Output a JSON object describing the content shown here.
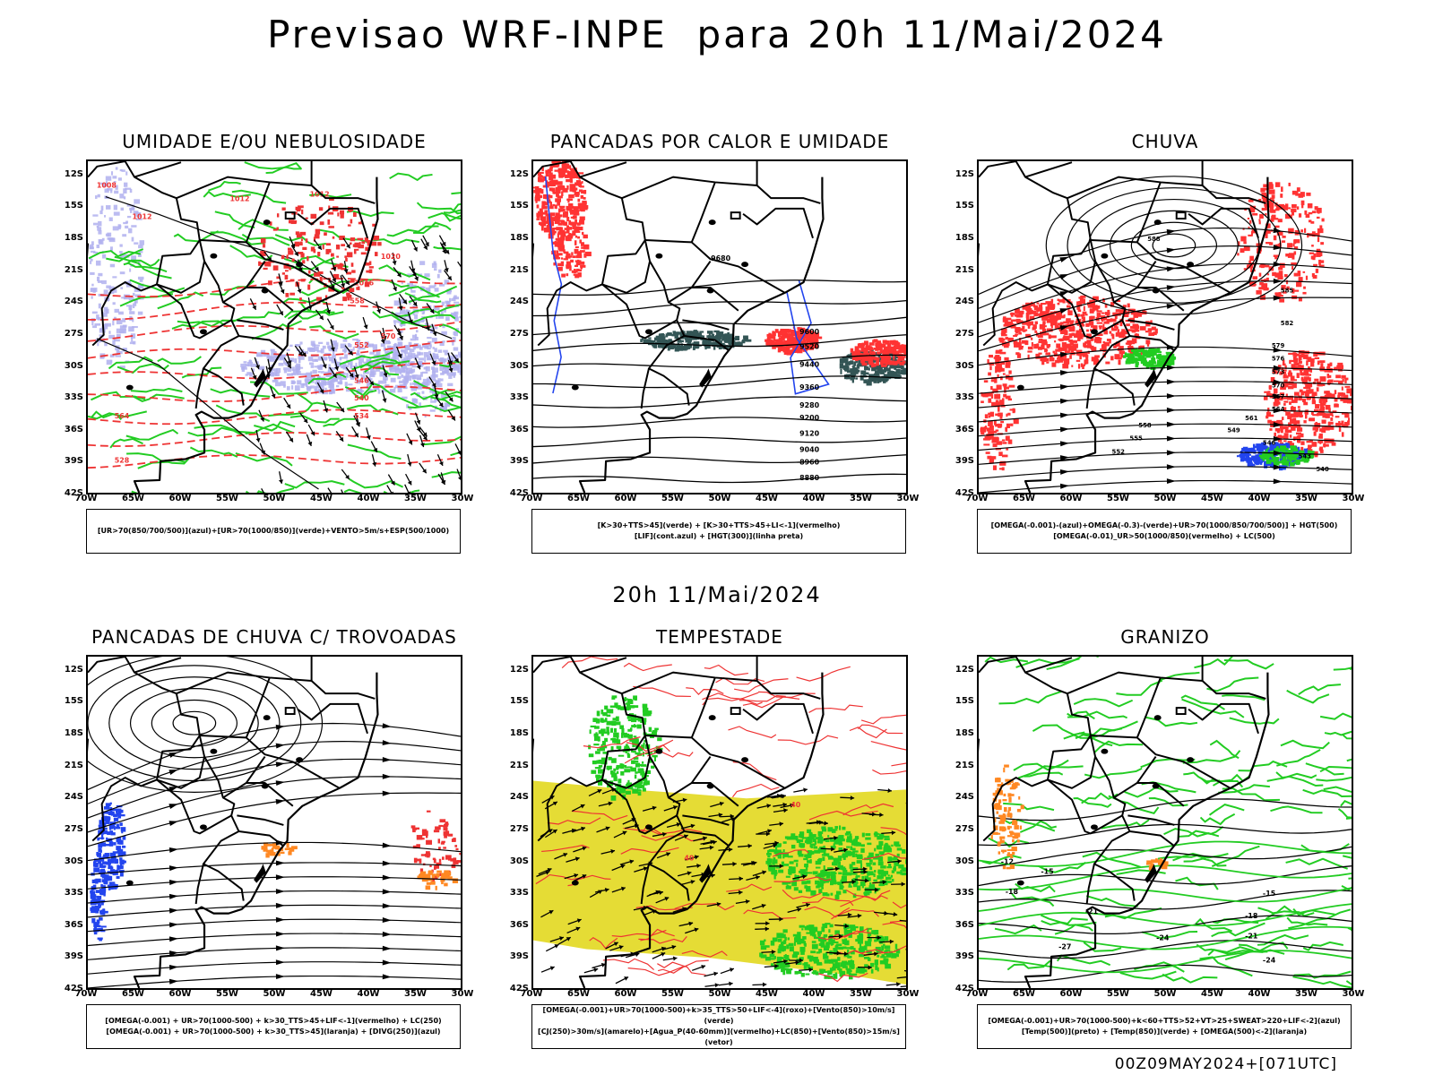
{
  "header": {
    "title": "Previsao WRF-INPE  para 20h 11/Mai/2024",
    "mid_title": "20h 11/Mai/2024",
    "footer": "00Z09MAY2024+[071UTC]"
  },
  "axes": {
    "lat_labels": [
      "12S",
      "15S",
      "18S",
      "21S",
      "24S",
      "27S",
      "30S",
      "33S",
      "36S",
      "39S",
      "42S"
    ],
    "lon_labels": [
      "70W",
      "65W",
      "60W",
      "55W",
      "50W",
      "45W",
      "40W",
      "35W",
      "30W"
    ]
  },
  "colors": {
    "contour_black": "#000000",
    "contour_red": "#ee3333",
    "green": "#22cc22",
    "blue": "#2244ee",
    "lilac": "#b0b0ee",
    "red_fill": "#ff3333",
    "dark_teal": "#335555",
    "yellow": "#e5dc35",
    "orange": "#ff8822"
  },
  "chart_data": [
    {
      "type": "map",
      "title": "UMIDADE E/OU NEBULOSIDADE",
      "legend": [
        "[UR>70(850/700/500)](azul)+[UR>70(1000/850)](verde)+VENTO>5m/s+ESP(500/1000)"
      ],
      "contour_labels": [
        "1008",
        "1012",
        "1012",
        "1012",
        "1016",
        "1020",
        "570",
        "564",
        "558",
        "552",
        "546",
        "540",
        "534",
        "528"
      ]
    },
    {
      "type": "map",
      "title": "PANCADAS POR CALOR E UMIDADE",
      "legend": [
        "[K>30+TTS>45](verde) + [K>30+TTS>45+LI<-1](vermelho)",
        "[LIF](cont.azul) + [HGT(300)](linha preta)"
      ],
      "contour_labels": [
        "9680",
        "9600",
        "9520",
        "9440",
        "9360",
        "9280",
        "9200",
        "9120",
        "9040",
        "8960",
        "8880"
      ]
    },
    {
      "type": "map",
      "title": "CHUVA",
      "legend": [
        "[OMEGA(-0.001)-(azul)+OMEGA(-0.3)-(verde)+UR>70(1000/850/700/500)] + HGT(500)",
        "[OMEGA(-0.01)_UR>50(1000/850)(vermelho) + LC(500)"
      ],
      "contour_labels": [
        "588",
        "585",
        "582",
        "579",
        "576",
        "573",
        "570",
        "567",
        "564",
        "561",
        "558",
        "555",
        "552",
        "549",
        "546",
        "543",
        "540"
      ]
    },
    {
      "type": "map",
      "title": "PANCADAS DE CHUVA C/ TROVOADAS",
      "legend": [
        "[OMEGA(-0.001) + UR>70(1000-500) + k>30_TTS>45+LIF<-1](vermelho) + LC(250)",
        "[OMEGA(-0.001) + UR>70(1000-500) + k>30_TTS>45](laranja) + [DIVG(250)](azul)"
      ],
      "contour_labels": []
    },
    {
      "type": "map",
      "title": "TEMPESTADE",
      "legend": [
        "[OMEGA(-0.001)+UR>70(1000-500)+k>35_TTS>50+LIF<-4](roxo)+[Vento(850)>10m/s](verde)",
        "[CJ(250)>30m/s](amarelo)+[Agua_P(40-60mm)](vermelho)+LC(850)+[Vento(850)>15m/s](vetor)"
      ],
      "contour_labels": [
        "40",
        "40"
      ]
    },
    {
      "type": "map",
      "title": "GRANIZO",
      "legend": [
        "[OMEGA(-0.001)+UR>70(1000-500)+k<60+TTS>52+VT>25+SWEAT>220+LIF<-2](azul)",
        "[Temp(500)](preto) + [Temp(850)](verde) + [OMEGA(500)<-2](laranja)"
      ],
      "contour_labels": [
        "-12",
        "-15",
        "-18",
        "-21",
        "-24",
        "-27",
        "-15",
        "-18",
        "-21",
        "-24"
      ]
    }
  ]
}
